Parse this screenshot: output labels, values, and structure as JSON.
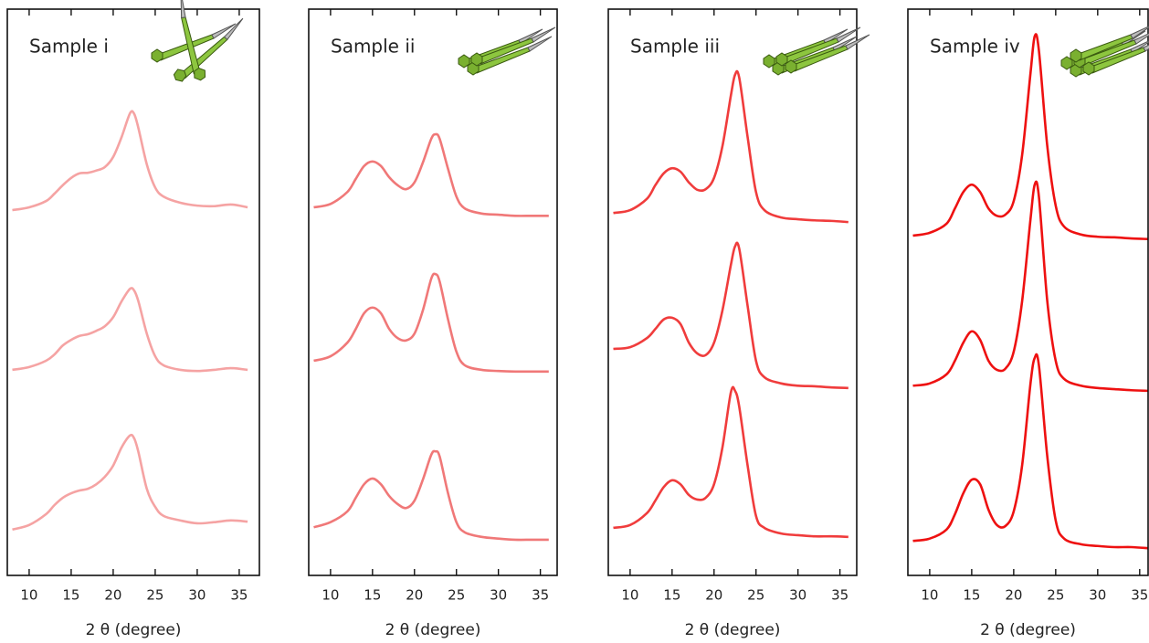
{
  "chart_data": [
    {
      "type": "line",
      "title": "Sample i",
      "xlabel": "2 θ (degree)",
      "x": [
        8,
        10,
        12,
        13,
        14,
        15,
        16,
        17,
        18,
        19,
        20,
        21,
        22,
        22.5,
        23,
        24,
        25,
        26,
        28,
        30,
        32,
        34,
        36
      ],
      "xlim": [
        7.4,
        37.4
      ],
      "xticks": [
        10,
        15,
        20,
        25,
        30,
        35
      ],
      "ylim": [
        0,
        10
      ],
      "series": [
        {
          "color": "#f5a3a3",
          "values": [
            6.45,
            6.5,
            6.61,
            6.74,
            6.89,
            7.02,
            7.1,
            7.11,
            7.15,
            7.21,
            7.39,
            7.74,
            8.16,
            8.15,
            7.9,
            7.26,
            6.85,
            6.69,
            6.58,
            6.53,
            6.52,
            6.55,
            6.5
          ]
        },
        {
          "color": "#f5a3a3",
          "values": [
            3.63,
            3.68,
            3.79,
            3.9,
            4.06,
            4.16,
            4.23,
            4.26,
            4.32,
            4.4,
            4.56,
            4.84,
            5.06,
            5.03,
            4.84,
            4.27,
            3.87,
            3.71,
            3.63,
            3.61,
            3.63,
            3.66,
            3.63
          ]
        },
        {
          "color": "#f5a3a3",
          "values": [
            0.81,
            0.89,
            1.08,
            1.24,
            1.37,
            1.45,
            1.5,
            1.53,
            1.61,
            1.74,
            1.94,
            2.26,
            2.47,
            2.42,
            2.18,
            1.53,
            1.21,
            1.05,
            0.97,
            0.92,
            0.94,
            0.97,
            0.95
          ]
        }
      ]
    },
    {
      "type": "line",
      "title": "Sample ii",
      "xlabel": "2 θ (degree)",
      "x": [
        8,
        10,
        12,
        13,
        14,
        15,
        16,
        17,
        18,
        19,
        20,
        21,
        22,
        22.5,
        23,
        24,
        25,
        26,
        28,
        30,
        32,
        34,
        36
      ],
      "xlim": [
        7.4,
        37.0
      ],
      "xticks": [
        10,
        15,
        20,
        25,
        30,
        35
      ],
      "ylim": [
        0,
        10
      ],
      "series": [
        {
          "color": "#f07878",
          "values": [
            6.5,
            6.56,
            6.77,
            7.0,
            7.23,
            7.31,
            7.23,
            7.03,
            6.89,
            6.82,
            6.94,
            7.29,
            7.71,
            7.79,
            7.71,
            7.18,
            6.69,
            6.48,
            6.39,
            6.37,
            6.35,
            6.35,
            6.35
          ]
        },
        {
          "color": "#f07878",
          "values": [
            3.79,
            3.87,
            4.11,
            4.35,
            4.63,
            4.73,
            4.63,
            4.35,
            4.19,
            4.15,
            4.27,
            4.68,
            5.24,
            5.32,
            5.19,
            4.52,
            3.95,
            3.71,
            3.63,
            3.61,
            3.6,
            3.6,
            3.6
          ]
        },
        {
          "color": "#f07878",
          "values": [
            0.85,
            0.94,
            1.13,
            1.37,
            1.61,
            1.71,
            1.61,
            1.4,
            1.26,
            1.19,
            1.32,
            1.69,
            2.13,
            2.19,
            2.1,
            1.45,
            0.94,
            0.76,
            0.68,
            0.65,
            0.63,
            0.63,
            0.63
          ]
        }
      ]
    },
    {
      "type": "line",
      "title": "Sample iii",
      "xlabel": "2 θ (degree)",
      "x": [
        8,
        10,
        12,
        13,
        14,
        15,
        16,
        17,
        18,
        19,
        20,
        21,
        22,
        22.5,
        23,
        24,
        25,
        26,
        28,
        30,
        32,
        34,
        36
      ],
      "xlim": [
        7.4,
        37.0
      ],
      "xticks": [
        10,
        15,
        20,
        25,
        30,
        35
      ],
      "ylim": [
        0,
        10
      ],
      "series": [
        {
          "color": "#f03c3c",
          "values": [
            6.4,
            6.45,
            6.65,
            6.89,
            7.1,
            7.19,
            7.13,
            6.94,
            6.81,
            6.82,
            7.02,
            7.58,
            8.47,
            8.84,
            8.79,
            7.74,
            6.77,
            6.45,
            6.32,
            6.29,
            6.27,
            6.26,
            6.24
          ]
        },
        {
          "color": "#f03c3c",
          "values": [
            4.0,
            4.03,
            4.19,
            4.35,
            4.52,
            4.55,
            4.44,
            4.11,
            3.92,
            3.89,
            4.11,
            4.68,
            5.48,
            5.81,
            5.77,
            4.76,
            3.79,
            3.5,
            3.39,
            3.35,
            3.34,
            3.32,
            3.31
          ]
        },
        {
          "color": "#f03c3c",
          "values": [
            0.84,
            0.89,
            1.1,
            1.32,
            1.56,
            1.68,
            1.61,
            1.42,
            1.34,
            1.37,
            1.61,
            2.26,
            3.23,
            3.26,
            2.98,
            1.94,
            1.05,
            0.84,
            0.74,
            0.71,
            0.69,
            0.69,
            0.68
          ]
        }
      ]
    },
    {
      "type": "line",
      "title": "Sample iv",
      "xlabel": "2 θ (degree)",
      "x": [
        8,
        10,
        12,
        13,
        14,
        15,
        16,
        17,
        18,
        19,
        20,
        21,
        22,
        22.5,
        23,
        24,
        25,
        26,
        28,
        30,
        32,
        34,
        36
      ],
      "xlim": [
        7.4,
        36.0
      ],
      "xticks": [
        10,
        15,
        20,
        25,
        30,
        35
      ],
      "ylim": [
        0,
        10
      ],
      "series": [
        {
          "color": "#ee1111",
          "values": [
            6.0,
            6.05,
            6.21,
            6.48,
            6.77,
            6.9,
            6.77,
            6.48,
            6.35,
            6.37,
            6.61,
            7.42,
            8.87,
            9.52,
            9.27,
            7.58,
            6.53,
            6.16,
            6.02,
            5.98,
            5.97,
            5.95,
            5.94
          ]
        },
        {
          "color": "#ee1111",
          "values": [
            3.35,
            3.39,
            3.55,
            3.79,
            4.11,
            4.31,
            4.16,
            3.79,
            3.63,
            3.65,
            3.95,
            4.84,
            6.29,
            6.9,
            6.69,
            4.84,
            3.79,
            3.47,
            3.35,
            3.31,
            3.29,
            3.27,
            3.26
          ]
        },
        {
          "color": "#ee1111",
          "values": [
            0.61,
            0.65,
            0.81,
            1.08,
            1.45,
            1.69,
            1.61,
            1.16,
            0.89,
            0.87,
            1.13,
            1.94,
            3.39,
            3.84,
            3.71,
            2.1,
            0.97,
            0.65,
            0.55,
            0.52,
            0.5,
            0.5,
            0.48
          ]
        }
      ]
    }
  ]
}
